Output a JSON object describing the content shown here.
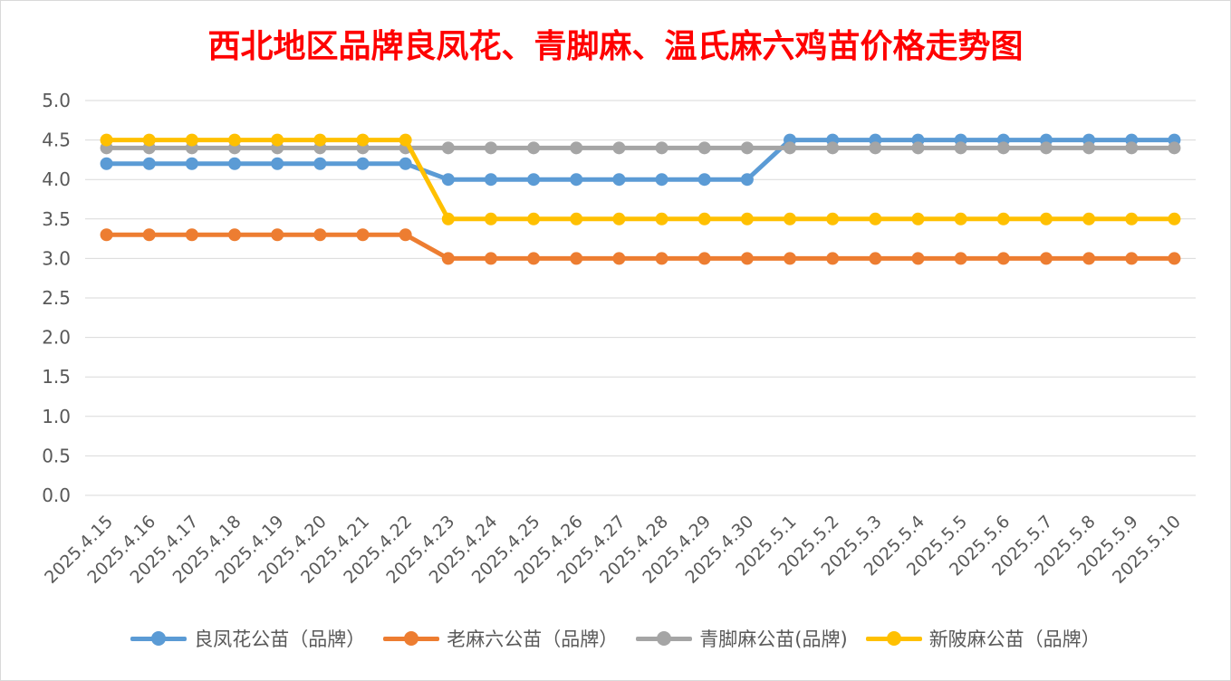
{
  "chart_data": {
    "type": "line",
    "title": "西北地区品牌良凤花、青脚麻、温氏麻六鸡苗价格走势图",
    "xlabel": "",
    "ylabel": "",
    "ylim": [
      0,
      5.0
    ],
    "y_ticks": [
      "0.0",
      "0.5",
      "1.0",
      "1.5",
      "2.0",
      "2.5",
      "3.0",
      "3.5",
      "4.0",
      "4.5",
      "5.0"
    ],
    "grid": true,
    "legend_position": "bottom",
    "categories": [
      "2025.4.15",
      "2025.4.16",
      "2025.4.17",
      "2025.4.18",
      "2025.4.19",
      "2025.4.20",
      "2025.4.21",
      "2025.4.22",
      "2025.4.23",
      "2025.4.24",
      "2025.4.25",
      "2025.4.26",
      "2025.4.27",
      "2025.4.28",
      "2025.4.29",
      "2025.4.30",
      "2025.5.1",
      "2025.5.2",
      "2025.5.3",
      "2025.5.4",
      "2025.5.5",
      "2025.5.6",
      "2025.5.7",
      "2025.5.8",
      "2025.5.9",
      "2025.5.10"
    ],
    "series": [
      {
        "name": "良凤花公苗（品牌）",
        "color": "#5b9bd5",
        "values": [
          4.2,
          4.2,
          4.2,
          4.2,
          4.2,
          4.2,
          4.2,
          4.2,
          4.0,
          4.0,
          4.0,
          4.0,
          4.0,
          4.0,
          4.0,
          4.0,
          4.5,
          4.5,
          4.5,
          4.5,
          4.5,
          4.5,
          4.5,
          4.5,
          4.5,
          4.5
        ]
      },
      {
        "name": "老麻六公苗（品牌）",
        "color": "#ed7d31",
        "values": [
          3.3,
          3.3,
          3.3,
          3.3,
          3.3,
          3.3,
          3.3,
          3.3,
          3.0,
          3.0,
          3.0,
          3.0,
          3.0,
          3.0,
          3.0,
          3.0,
          3.0,
          3.0,
          3.0,
          3.0,
          3.0,
          3.0,
          3.0,
          3.0,
          3.0,
          3.0
        ]
      },
      {
        "name": "青脚麻公苗(品牌)",
        "color": "#a5a5a5",
        "values": [
          4.4,
          4.4,
          4.4,
          4.4,
          4.4,
          4.4,
          4.4,
          4.4,
          4.4,
          4.4,
          4.4,
          4.4,
          4.4,
          4.4,
          4.4,
          4.4,
          4.4,
          4.4,
          4.4,
          4.4,
          4.4,
          4.4,
          4.4,
          4.4,
          4.4,
          4.4
        ]
      },
      {
        "name": "新陂麻公苗（品牌）",
        "color": "#ffc000",
        "values": [
          4.5,
          4.5,
          4.5,
          4.5,
          4.5,
          4.5,
          4.5,
          4.5,
          3.5,
          3.5,
          3.5,
          3.5,
          3.5,
          3.5,
          3.5,
          3.5,
          3.5,
          3.5,
          3.5,
          3.5,
          3.5,
          3.5,
          3.5,
          3.5,
          3.5,
          3.5
        ]
      }
    ]
  }
}
